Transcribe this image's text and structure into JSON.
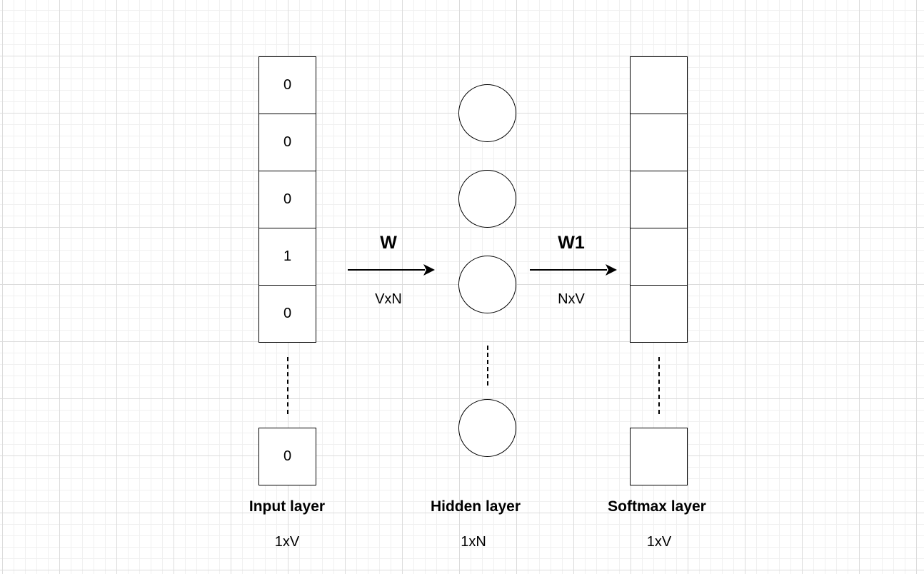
{
  "input_layer": {
    "cells": [
      "0",
      "0",
      "0",
      "1",
      "0"
    ],
    "last_cell": "0",
    "title": "Input layer",
    "dim": "1xV"
  },
  "hidden_layer": {
    "title": "Hidden layer",
    "dim": "1xN"
  },
  "softmax_layer": {
    "cells": [
      "",
      "",
      "",
      "",
      ""
    ],
    "last_cell": "",
    "title": "Softmax layer",
    "dim": "1xV"
  },
  "edge_w": {
    "name": "W",
    "dim": "VxN"
  },
  "edge_w1": {
    "name": "W1",
    "dim": "NxV"
  }
}
